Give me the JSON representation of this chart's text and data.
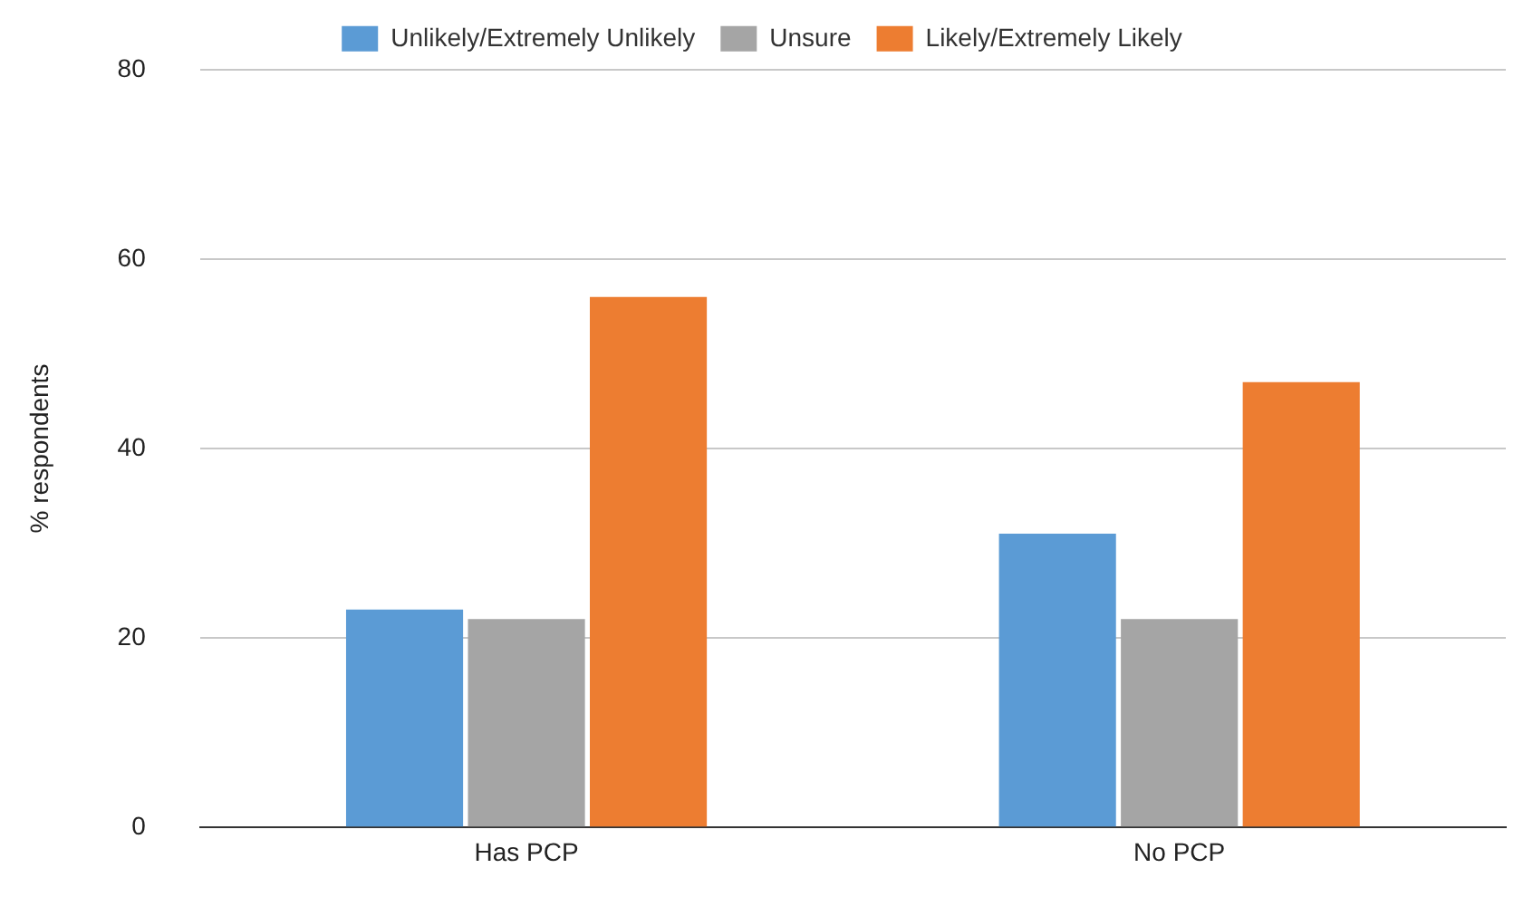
{
  "chart_data": {
    "type": "bar",
    "ylabel": "% respondents",
    "categories": [
      "Has PCP",
      "No PCP"
    ],
    "series": [
      {
        "name": "Unlikely/Extremely Unlikely",
        "color": "#5b9bd5",
        "values": [
          23,
          31
        ]
      },
      {
        "name": "Unsure",
        "color": "#a5a5a5",
        "values": [
          22,
          22
        ]
      },
      {
        "name": "Likely/Extremely Likely",
        "color": "#ed7d31",
        "values": [
          56,
          47
        ]
      }
    ],
    "ylim": [
      0,
      80
    ],
    "yticks": [
      0,
      20,
      40,
      60,
      80
    ],
    "grid": "y",
    "legend": "top"
  }
}
